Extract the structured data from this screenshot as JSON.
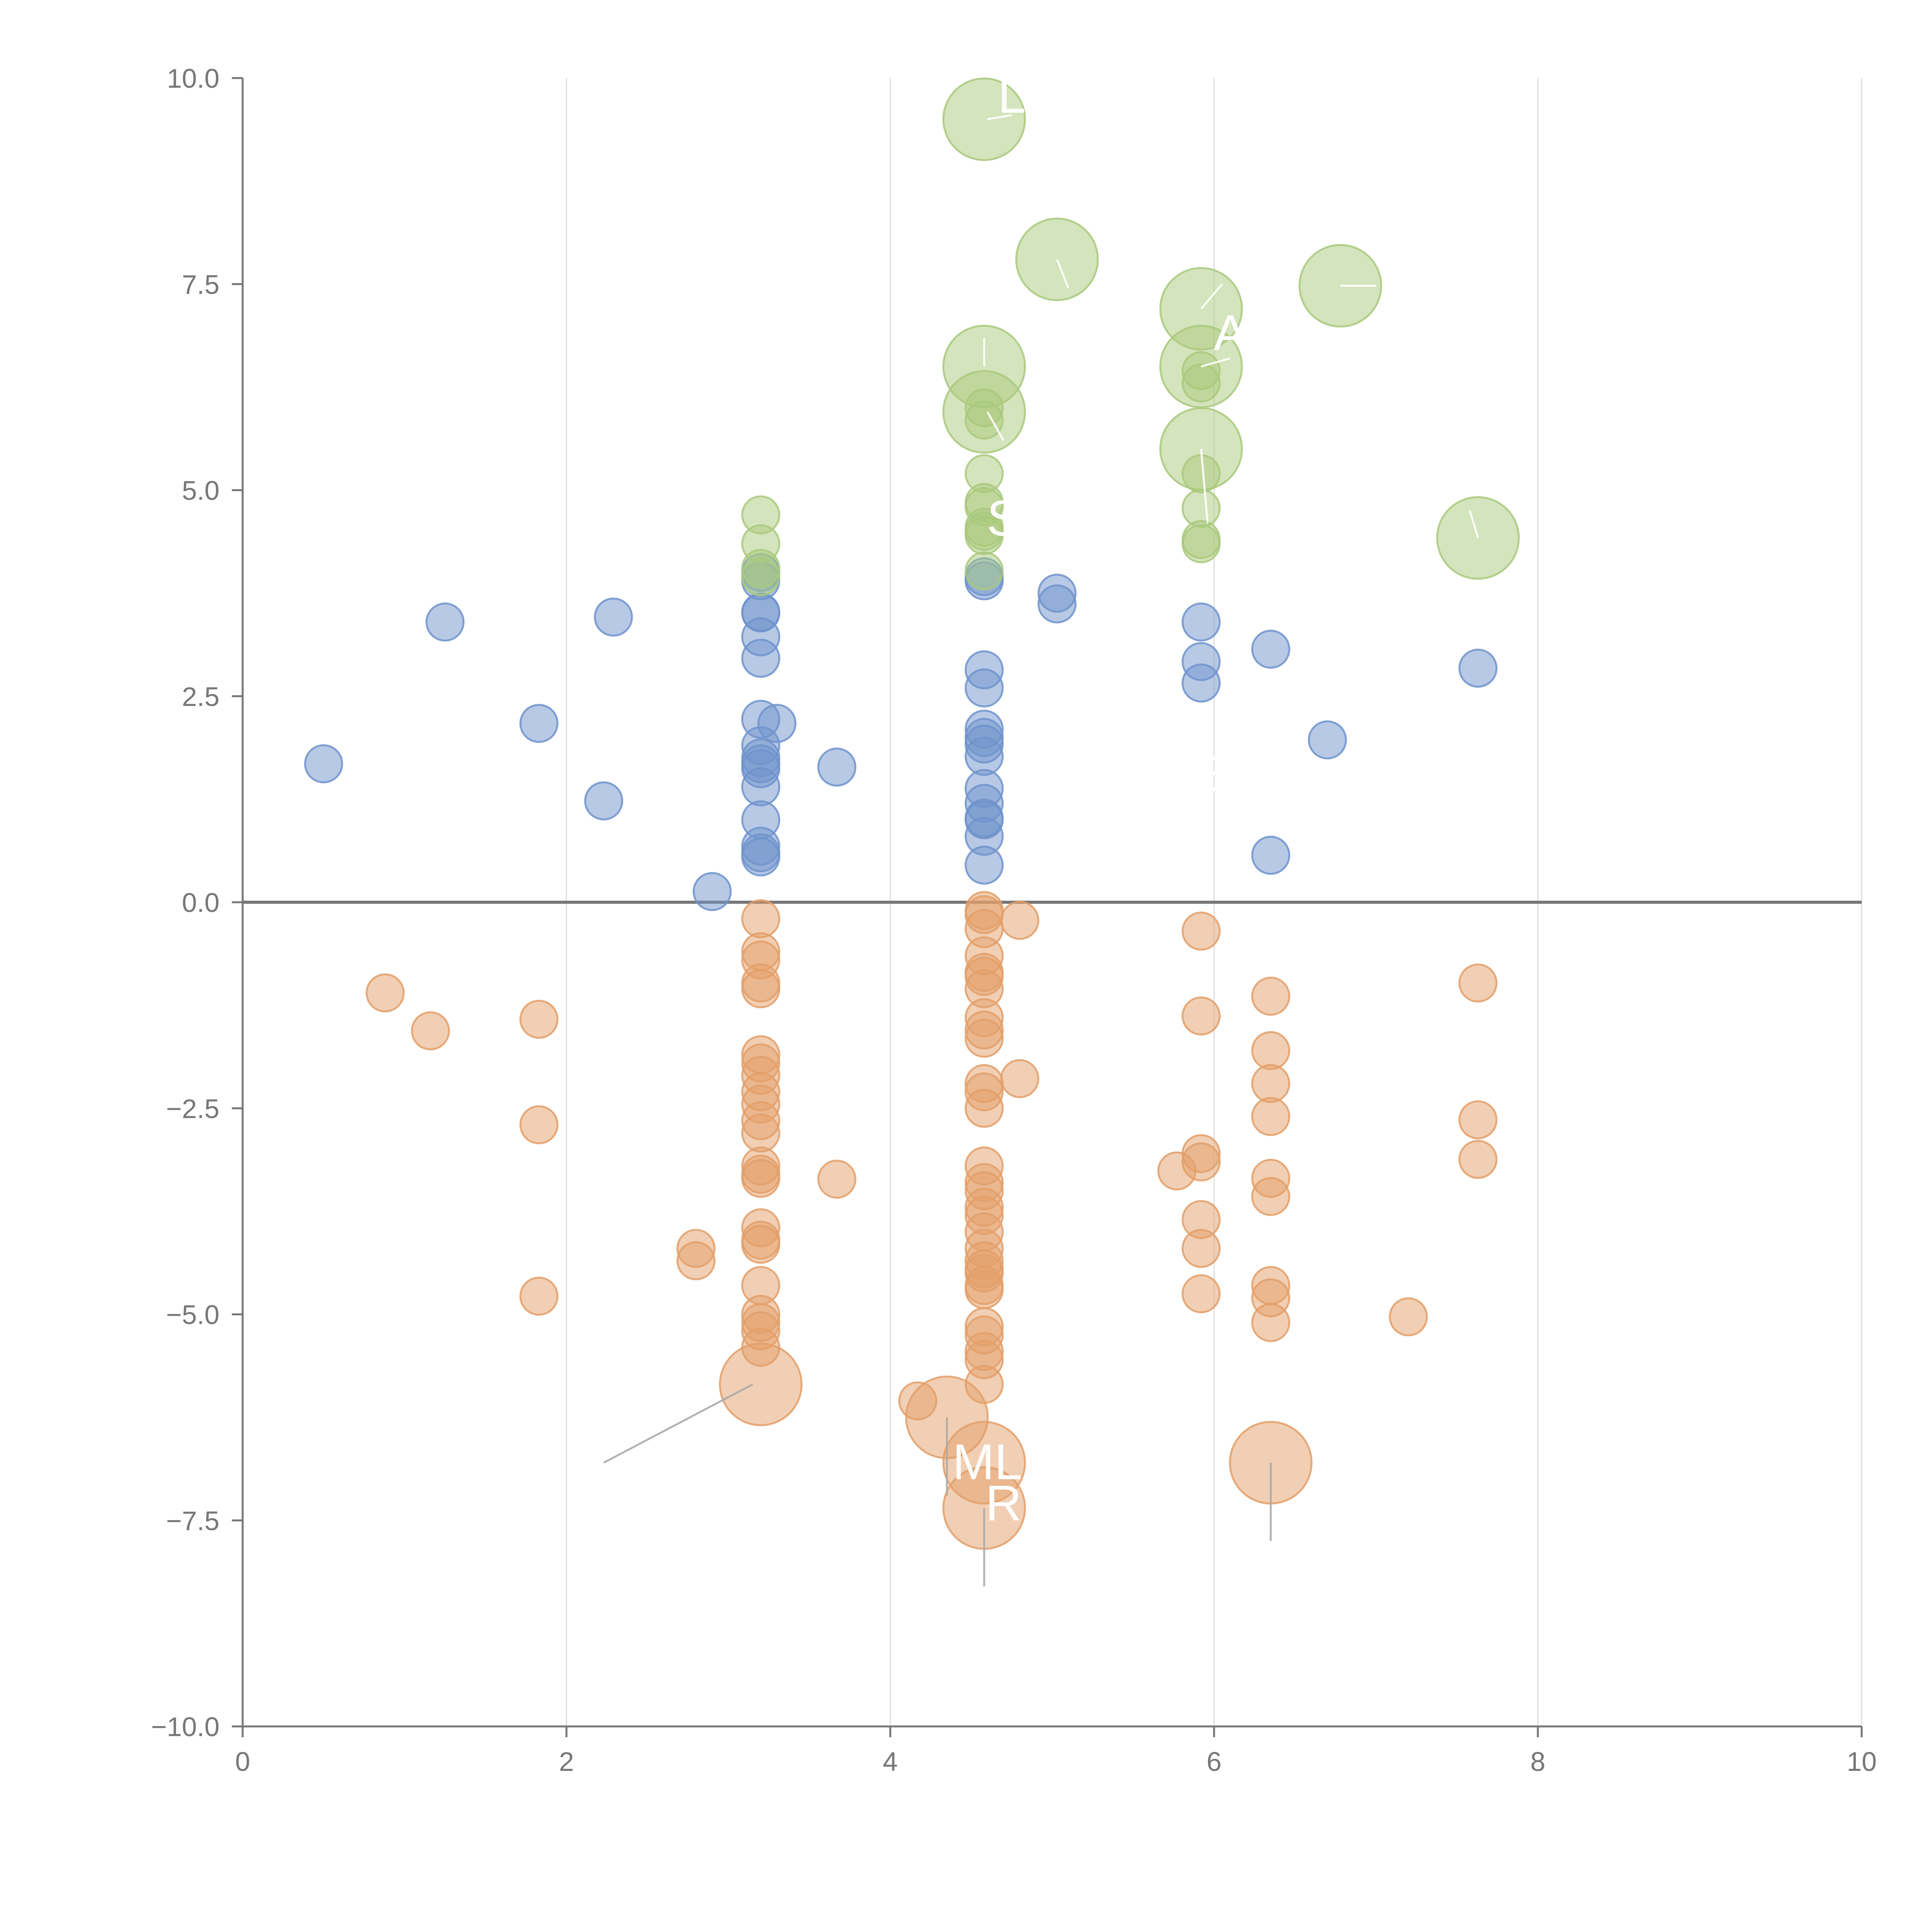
{
  "chart_data": {
    "type": "scatter",
    "title": "",
    "xlabel": "",
    "ylabel": "",
    "xlim": [
      0,
      10
    ],
    "ylim": [
      -10,
      10
    ],
    "x_ticks": [
      0,
      2,
      4,
      6,
      8,
      10
    ],
    "y_ticks": [
      -10,
      -7.5,
      -5,
      -2.5,
      0,
      2.5,
      5,
      7.5,
      10
    ],
    "x_tick_labels": [
      "0",
      "2",
      "4",
      "6",
      "8",
      "10"
    ],
    "y_tick_labels": [
      "−10.0",
      "−7.5",
      "−5.0",
      "−2.5",
      "0.0",
      "2.5",
      "5.0",
      "7.5",
      "10.0"
    ],
    "vertical_grid": true,
    "zero_line": true,
    "colors": {
      "blue": "#6f93cc",
      "orange": "#e39f69",
      "green": "#a9c97c",
      "axis": "#777777",
      "grid": "#dddddd"
    },
    "series": [
      {
        "name": "blue",
        "color": "#6f93cc",
        "points": [
          [
            0.5,
            1.68,
            1
          ],
          [
            1.25,
            3.4,
            1
          ],
          [
            1.83,
            2.17,
            1
          ],
          [
            2.23,
            1.23,
            1
          ],
          [
            2.29,
            3.46,
            1
          ],
          [
            2.9,
            0.13,
            1
          ],
          [
            3.2,
            4.0,
            1
          ],
          [
            3.2,
            3.9,
            1
          ],
          [
            3.2,
            3.52,
            1
          ],
          [
            3.2,
            3.51,
            1
          ],
          [
            3.2,
            3.22,
            1
          ],
          [
            3.2,
            2.96,
            1
          ],
          [
            3.2,
            2.22,
            1
          ],
          [
            3.3,
            2.17,
            1
          ],
          [
            3.2,
            1.9,
            1
          ],
          [
            3.2,
            1.75,
            1
          ],
          [
            3.2,
            1.68,
            1
          ],
          [
            3.2,
            1.62,
            1
          ],
          [
            3.2,
            1.4,
            1
          ],
          [
            3.2,
            1.0,
            1
          ],
          [
            3.2,
            0.68,
            1
          ],
          [
            3.2,
            0.6,
            1
          ],
          [
            3.2,
            0.55,
            1
          ],
          [
            3.67,
            1.64,
            1
          ],
          [
            4.58,
            3.95,
            1
          ],
          [
            4.58,
            3.9,
            1
          ],
          [
            4.58,
            2.82,
            1
          ],
          [
            4.58,
            2.6,
            1
          ],
          [
            4.58,
            2.1,
            1
          ],
          [
            4.58,
            2.0,
            1
          ],
          [
            4.58,
            1.92,
            1
          ],
          [
            4.58,
            1.77,
            1
          ],
          [
            4.58,
            1.38,
            1
          ],
          [
            4.58,
            1.2,
            1
          ],
          [
            4.58,
            1.02,
            1
          ],
          [
            4.58,
            1.0,
            1
          ],
          [
            4.58,
            0.8,
            1
          ],
          [
            4.58,
            0.45,
            1
          ],
          [
            5.03,
            3.75,
            1
          ],
          [
            5.03,
            3.62,
            1
          ],
          [
            5.92,
            3.4,
            1
          ],
          [
            5.92,
            2.92,
            1
          ],
          [
            5.92,
            2.66,
            1
          ],
          [
            6.35,
            3.07,
            1
          ],
          [
            6.35,
            0.57,
            1
          ],
          [
            6.7,
            1.97,
            1
          ],
          [
            7.63,
            2.84,
            1
          ]
        ]
      },
      {
        "name": "orange",
        "color": "#e39f69",
        "points": [
          [
            0.88,
            -1.1,
            1
          ],
          [
            1.16,
            -1.56,
            1
          ],
          [
            1.83,
            -1.42,
            1
          ],
          [
            1.83,
            -2.7,
            1
          ],
          [
            1.83,
            -4.78,
            1
          ],
          [
            2.8,
            -4.2,
            1
          ],
          [
            2.8,
            -4.35,
            1
          ],
          [
            3.2,
            -0.2,
            1
          ],
          [
            3.2,
            -0.6,
            1
          ],
          [
            3.2,
            -0.7,
            1
          ],
          [
            3.2,
            -0.98,
            1
          ],
          [
            3.2,
            -1.05,
            1
          ],
          [
            3.2,
            -1.85,
            1
          ],
          [
            3.2,
            -1.95,
            1
          ],
          [
            3.2,
            -2.1,
            1
          ],
          [
            3.2,
            -2.3,
            1
          ],
          [
            3.2,
            -2.45,
            1
          ],
          [
            3.2,
            -2.65,
            1
          ],
          [
            3.2,
            -2.8,
            1
          ],
          [
            3.2,
            -3.2,
            1
          ],
          [
            3.2,
            -3.3,
            1
          ],
          [
            3.2,
            -3.35,
            1
          ],
          [
            3.2,
            -3.95,
            1
          ],
          [
            3.2,
            -4.1,
            1
          ],
          [
            3.2,
            -4.15,
            1
          ],
          [
            3.2,
            -4.65,
            1
          ],
          [
            3.2,
            -5.0,
            1
          ],
          [
            3.2,
            -5.1,
            1
          ],
          [
            3.2,
            -5.2,
            1
          ],
          [
            3.2,
            -5.4,
            1
          ],
          [
            3.2,
            -5.85,
            2.2
          ],
          [
            3.67,
            -3.36,
            1
          ],
          [
            4.17,
            -6.05,
            1
          ],
          [
            4.35,
            -6.25,
            2.2
          ],
          [
            4.58,
            -0.1,
            1
          ],
          [
            4.58,
            -0.15,
            1
          ],
          [
            4.58,
            -0.32,
            1
          ],
          [
            4.58,
            -0.65,
            1
          ],
          [
            4.58,
            -0.85,
            1
          ],
          [
            4.58,
            -0.9,
            1
          ],
          [
            4.58,
            -1.05,
            1
          ],
          [
            4.58,
            -1.4,
            1
          ],
          [
            4.58,
            -1.55,
            1
          ],
          [
            4.58,
            -1.65,
            1
          ],
          [
            4.58,
            -2.2,
            1
          ],
          [
            4.58,
            -2.3,
            1
          ],
          [
            4.58,
            -2.5,
            1
          ],
          [
            4.58,
            -3.2,
            1
          ],
          [
            4.58,
            -3.4,
            1
          ],
          [
            4.58,
            -3.5,
            1
          ],
          [
            4.58,
            -3.7,
            1
          ],
          [
            4.58,
            -3.8,
            1
          ],
          [
            4.58,
            -4.0,
            1
          ],
          [
            4.58,
            -4.2,
            1
          ],
          [
            4.58,
            -4.35,
            1
          ],
          [
            4.58,
            -4.45,
            1
          ],
          [
            4.58,
            -4.5,
            1
          ],
          [
            4.58,
            -4.65,
            1
          ],
          [
            4.58,
            -4.7,
            1
          ],
          [
            4.58,
            -5.15,
            1
          ],
          [
            4.58,
            -5.25,
            1
          ],
          [
            4.58,
            -5.45,
            1
          ],
          [
            4.58,
            -5.55,
            1
          ],
          [
            4.58,
            -5.85,
            1
          ],
          [
            4.58,
            -6.8,
            2.2
          ],
          [
            4.58,
            -7.35,
            2.2
          ],
          [
            4.8,
            -0.22,
            1
          ],
          [
            4.8,
            -2.14,
            1
          ],
          [
            5.77,
            -3.26,
            1
          ],
          [
            5.92,
            -0.35,
            1
          ],
          [
            5.92,
            -1.38,
            1
          ],
          [
            5.92,
            -3.05,
            1
          ],
          [
            5.92,
            -3.15,
            1
          ],
          [
            5.92,
            -3.85,
            1
          ],
          [
            5.92,
            -4.2,
            1
          ],
          [
            5.92,
            -4.75,
            1
          ],
          [
            6.35,
            -1.14,
            1
          ],
          [
            6.35,
            -1.8,
            1
          ],
          [
            6.35,
            -2.2,
            1
          ],
          [
            6.35,
            -2.6,
            1
          ],
          [
            6.35,
            -3.35,
            1
          ],
          [
            6.35,
            -3.57,
            1
          ],
          [
            6.35,
            -4.65,
            1
          ],
          [
            6.35,
            -4.8,
            1
          ],
          [
            6.35,
            -5.1,
            1
          ],
          [
            6.35,
            -6.8,
            2.2
          ],
          [
            7.2,
            -5.03,
            1
          ],
          [
            7.63,
            -0.98,
            1
          ],
          [
            7.63,
            -2.64,
            1
          ],
          [
            7.63,
            -3.12,
            1
          ]
        ]
      },
      {
        "name": "green",
        "color": "#a9c97c",
        "points": [
          [
            3.2,
            4.7,
            1
          ],
          [
            3.2,
            4.35,
            1
          ],
          [
            3.2,
            4.05,
            1
          ],
          [
            3.2,
            3.95,
            1
          ],
          [
            4.58,
            9.5,
            2.2
          ],
          [
            4.58,
            6.5,
            2.2
          ],
          [
            4.58,
            6.0,
            1
          ],
          [
            4.58,
            5.95,
            2.2
          ],
          [
            4.58,
            5.85,
            1
          ],
          [
            4.58,
            5.2,
            1
          ],
          [
            4.58,
            4.85,
            1
          ],
          [
            4.58,
            4.8,
            1
          ],
          [
            4.58,
            4.55,
            1
          ],
          [
            4.58,
            4.5,
            1
          ],
          [
            4.58,
            4.45,
            1
          ],
          [
            4.58,
            4.02,
            1
          ],
          [
            5.03,
            7.8,
            2.2
          ],
          [
            5.92,
            7.2,
            2.2
          ],
          [
            5.92,
            6.5,
            2.2
          ],
          [
            5.92,
            6.45,
            1
          ],
          [
            5.92,
            6.3,
            1
          ],
          [
            5.92,
            5.5,
            2.2
          ],
          [
            5.92,
            5.2,
            1
          ],
          [
            5.92,
            4.78,
            1
          ],
          [
            5.92,
            4.4,
            1
          ],
          [
            5.92,
            4.35,
            1
          ],
          [
            6.78,
            7.48,
            2.2
          ],
          [
            7.63,
            4.42,
            2.2
          ]
        ]
      }
    ],
    "annotations": [
      {
        "text": "ML",
        "x": 4.6,
        "y": -7.0
      },
      {
        "text": "R",
        "x": 4.7,
        "y": -7.5
      },
      {
        "text": "S",
        "x": 4.7,
        "y": 4.45
      },
      {
        "text": "L",
        "x": 4.75,
        "y": 9.58
      },
      {
        "text": "A",
        "x": 6.1,
        "y": 6.7
      },
      {
        "text": "E",
        "x": 6.0,
        "y": 1.35
      }
    ],
    "leader_lines": [
      {
        "series": "orange",
        "from": [
          3.15,
          -5.85
        ],
        "to": [
          2.23,
          -6.8
        ]
      },
      {
        "series": "orange",
        "from": [
          4.35,
          -6.25
        ],
        "to": [
          4.35,
          -7.2
        ]
      },
      {
        "series": "orange",
        "from": [
          4.58,
          -7.35
        ],
        "to": [
          4.58,
          -8.3
        ]
      },
      {
        "series": "orange",
        "from": [
          6.35,
          -6.8
        ],
        "to": [
          6.35,
          -7.75
        ]
      },
      {
        "series": "green",
        "from": [
          4.6,
          9.5
        ],
        "to": [
          4.75,
          9.55
        ]
      },
      {
        "series": "green",
        "from": [
          4.58,
          6.5
        ],
        "to": [
          4.58,
          6.85
        ]
      },
      {
        "series": "green",
        "from": [
          4.6,
          5.95
        ],
        "to": [
          4.7,
          5.6
        ]
      },
      {
        "series": "green",
        "from": [
          5.03,
          7.8
        ],
        "to": [
          5.1,
          7.45
        ]
      },
      {
        "series": "green",
        "from": [
          5.92,
          7.2
        ],
        "to": [
          6.05,
          7.5
        ]
      },
      {
        "series": "green",
        "from": [
          5.92,
          6.5
        ],
        "to": [
          6.1,
          6.6
        ]
      },
      {
        "series": "green",
        "from": [
          5.92,
          5.5
        ],
        "to": [
          5.96,
          4.6
        ]
      },
      {
        "series": "green",
        "from": [
          6.78,
          7.48
        ],
        "to": [
          7.0,
          7.48
        ]
      },
      {
        "series": "green",
        "from": [
          7.63,
          4.42
        ],
        "to": [
          7.58,
          4.75
        ]
      }
    ]
  }
}
